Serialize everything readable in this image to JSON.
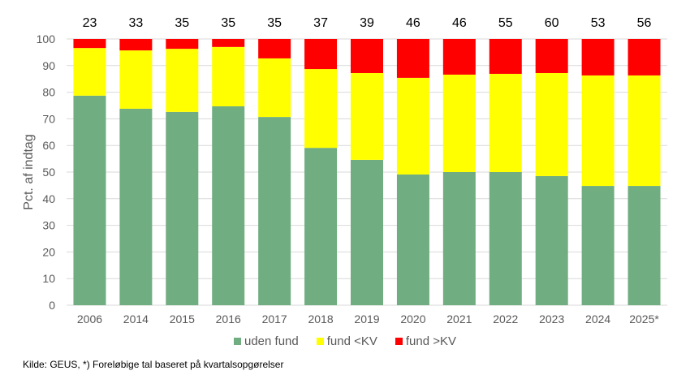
{
  "chart_data": {
    "type": "bar",
    "stacked": true,
    "ylabel": "Pct. af indtag",
    "ylim": [
      0,
      100
    ],
    "yticks": [
      0,
      10,
      20,
      30,
      40,
      50,
      60,
      70,
      80,
      90,
      100
    ],
    "grid": true,
    "legend_placement": "bottom",
    "categories": [
      "2006",
      "2014",
      "2015",
      "2016",
      "2017",
      "2018",
      "2019",
      "2020",
      "2021",
      "2022",
      "2023",
      "2024",
      "2025*"
    ],
    "top_labels": [
      "23",
      "33",
      "35",
      "35",
      "35",
      "37",
      "39",
      "46",
      "46",
      "55",
      "60",
      "53",
      "56"
    ],
    "series": [
      {
        "name": "uden fund",
        "color": "#70AD80",
        "values": [
          78.7,
          73.8,
          72.6,
          74.7,
          70.7,
          59.1,
          54.6,
          49.1,
          50.0,
          50.0,
          48.5,
          44.8,
          44.8
        ]
      },
      {
        "name": "fund <KV",
        "color": "#FFFF00",
        "values": [
          17.9,
          21.9,
          23.7,
          22.3,
          22.0,
          29.6,
          32.6,
          36.3,
          36.6,
          36.9,
          38.7,
          41.5,
          41.5
        ]
      },
      {
        "name": "fund >KV",
        "color": "#FF0000",
        "values": [
          3.4,
          4.3,
          3.7,
          3.0,
          7.3,
          11.3,
          12.8,
          14.6,
          13.4,
          13.1,
          12.8,
          13.7,
          13.7
        ]
      }
    ]
  },
  "source": "Kilde: GEUS, *) Foreløbige tal baseret på kvartalsopgørelser"
}
